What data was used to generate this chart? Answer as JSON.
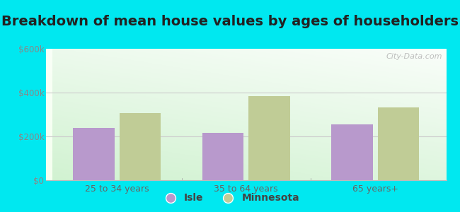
{
  "title": "Breakdown of mean house values by ages of householders",
  "categories": [
    "25 to 34 years",
    "35 to 64 years",
    "65 years+"
  ],
  "isle_values": [
    240000,
    215000,
    255000
  ],
  "minnesota_values": [
    308000,
    385000,
    332000
  ],
  "isle_color": "#b899cc",
  "minnesota_color": "#c0cc96",
  "ylim": [
    0,
    600000
  ],
  "yticks": [
    0,
    200000,
    400000,
    600000
  ],
  "ytick_labels": [
    "$0",
    "$200k",
    "$400k",
    "$600k"
  ],
  "legend_labels": [
    "Isle",
    "Minnesota"
  ],
  "background_outer": "#00e8f0",
  "watermark": "City-Data.com",
  "title_fontsize": 14,
  "bar_width": 0.32,
  "title_color": "#222222"
}
